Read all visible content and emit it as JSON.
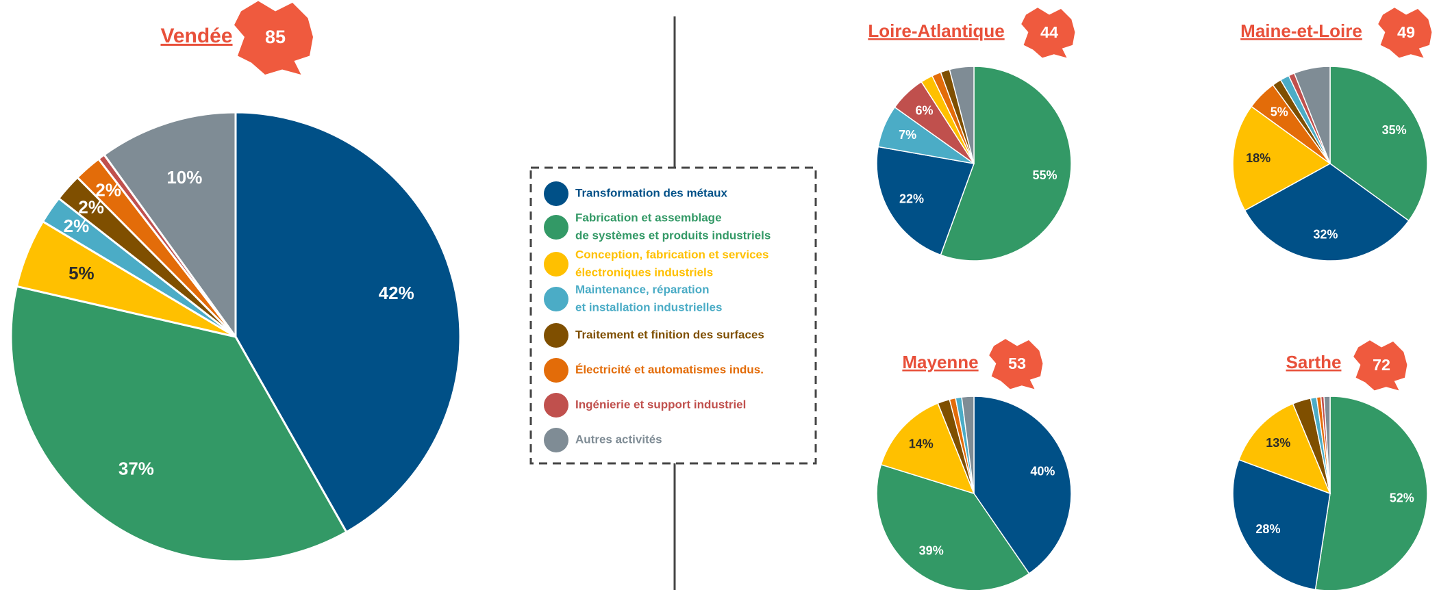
{
  "chart_data": [
    {
      "type": "pie",
      "title": "Vendée",
      "badge": 85,
      "values": [
        42,
        37,
        5,
        2,
        2,
        2,
        0.5,
        10
      ],
      "value_labels": [
        "42%",
        "37%",
        "5%",
        "2%",
        "2%",
        "2%",
        null,
        "10%"
      ],
      "colors": [
        "#005087",
        "#339966",
        "#ffc000",
        "#4bacc6",
        "#7f4f00",
        "#e36c09",
        "#c0504d",
        "#7f8c95"
      ]
    },
    {
      "type": "pie",
      "title": "Loire-Atlantique",
      "badge": 44,
      "values": [
        55,
        22,
        7,
        6,
        2,
        1.5,
        1.5,
        4
      ],
      "value_labels": [
        "55%",
        "22%",
        "7%",
        "6%",
        null,
        null,
        null,
        null
      ],
      "colors": [
        "#339966",
        "#005087",
        "#4bacc6",
        "#c0504d",
        "#ffc000",
        "#e36c09",
        "#7f4f00",
        "#7f8c95"
      ]
    },
    {
      "type": "pie",
      "title": "Maine-et-Loire",
      "badge": 49,
      "values": [
        35,
        32,
        18,
        5,
        1.5,
        1.5,
        1,
        6
      ],
      "value_labels": [
        "35%",
        "32%",
        "18%",
        "5%",
        null,
        null,
        null,
        null
      ],
      "colors": [
        "#339966",
        "#005087",
        "#ffc000",
        "#e36c09",
        "#7f4f00",
        "#4bacc6",
        "#c0504d",
        "#7f8c95"
      ]
    },
    {
      "type": "pie",
      "title": "Mayenne",
      "badge": 53,
      "values": [
        40,
        39,
        14,
        2,
        1,
        1,
        2
      ],
      "value_labels": [
        "40%",
        "39%",
        "14%",
        null,
        null,
        null,
        null
      ],
      "colors": [
        "#005087",
        "#339966",
        "#ffc000",
        "#7f4f00",
        "#e36c09",
        "#4bacc6",
        "#7f8c95"
      ]
    },
    {
      "type": "pie",
      "title": "Sarthe",
      "badge": 72,
      "values": [
        52,
        28,
        13,
        3,
        1,
        0.7,
        0.5,
        1
      ],
      "value_labels": [
        "52%",
        "28%",
        "13%",
        null,
        null,
        null,
        null,
        null
      ],
      "colors": [
        "#339966",
        "#005087",
        "#ffc000",
        "#7f4f00",
        "#4bacc6",
        "#e36c09",
        "#c0504d",
        "#7f8c95"
      ]
    }
  ],
  "legend": {
    "items": [
      {
        "name": [
          "Transformation des métaux"
        ],
        "color": "#005087"
      },
      {
        "name": [
          "Fabrication et assemblage",
          "de systèmes et produits industriels"
        ],
        "color": "#339966"
      },
      {
        "name": [
          "Conception, fabrication et services",
          "électroniques industriels"
        ],
        "color": "#ffc000"
      },
      {
        "name": [
          "Maintenance, réparation",
          "et installation industrielles"
        ],
        "color": "#4bacc6"
      },
      {
        "name": [
          "Traitement et finition des surfaces"
        ],
        "color": "#7f4f00"
      },
      {
        "name": [
          "Électricité et automatismes indus."
        ],
        "color": "#e36c09"
      },
      {
        "name": [
          "Ingénierie et support industriel"
        ],
        "color": "#c0504d"
      },
      {
        "name": [
          "Autres activités"
        ],
        "color": "#7f8c95"
      }
    ]
  }
}
